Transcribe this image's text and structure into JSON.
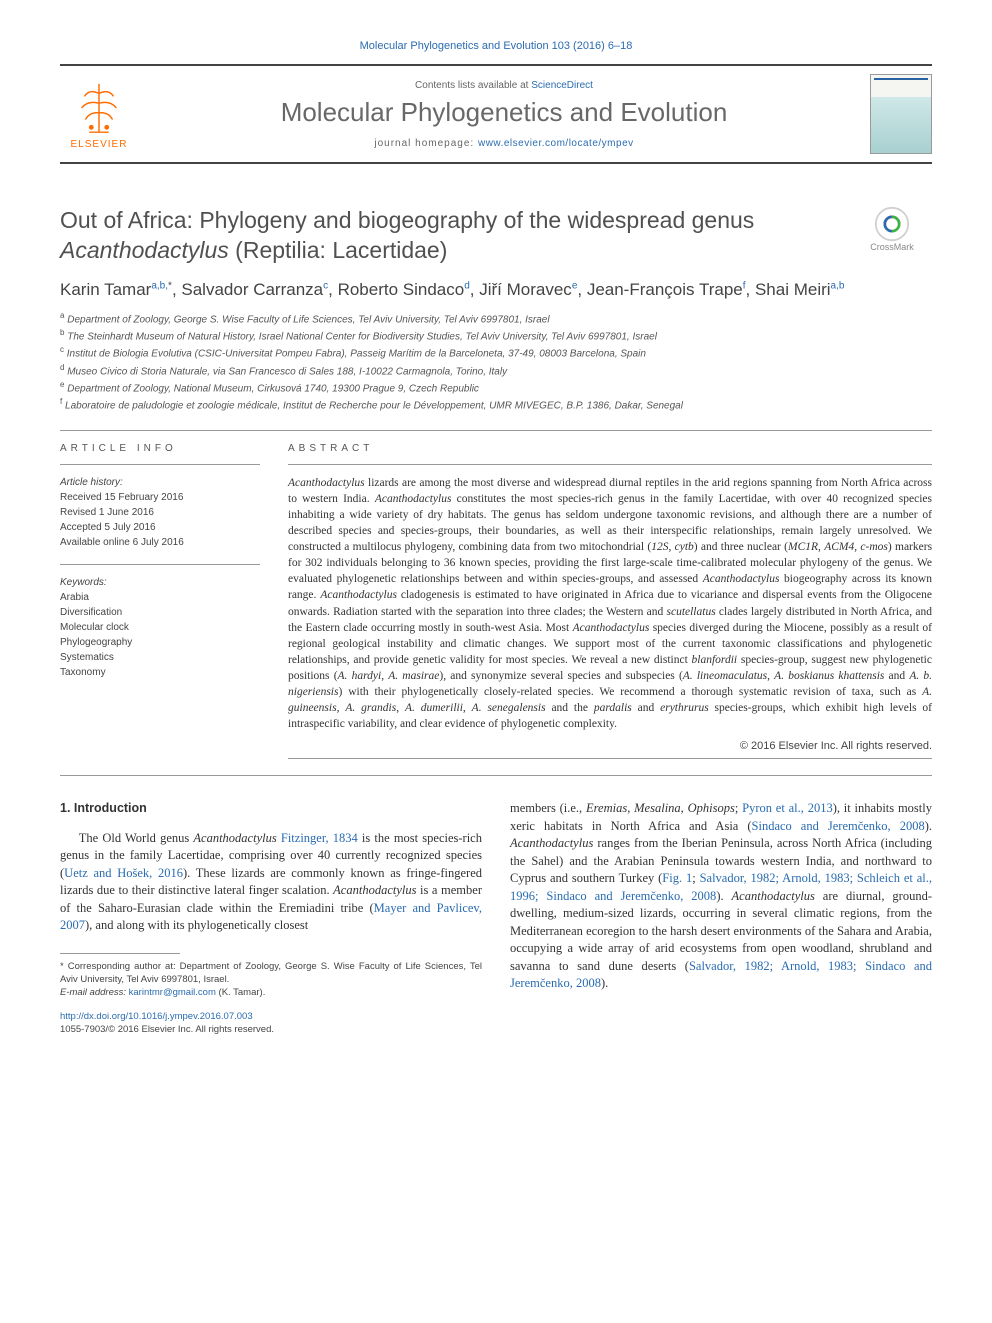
{
  "header": {
    "citation": "Molecular Phylogenetics and Evolution 103 (2016) 6–18",
    "contents_prefix": "Contents lists available at",
    "contents_link": "ScienceDirect",
    "journal_name": "Molecular Phylogenetics and Evolution",
    "homepage_prefix": "journal homepage:",
    "homepage_link": "www.elsevier.com/locate/ympev",
    "publisher": "ELSEVIER"
  },
  "crossmark": {
    "label": "CrossMark"
  },
  "title": {
    "line1": "Out of Africa: Phylogeny and biogeography of the widespread genus",
    "line2_italic": "Acanthodactylus",
    "line2_rest": " (Reptilia: Lacertidae)"
  },
  "authors": [
    {
      "name": "Karin Tamar",
      "affi": "a,b,",
      "star": "*"
    },
    {
      "name": "Salvador Carranza",
      "affi": "c"
    },
    {
      "name": "Roberto Sindaco",
      "affi": "d"
    },
    {
      "name": "Jiří Moravec",
      "affi": "e"
    },
    {
      "name": "Jean-François Trape",
      "affi": "f"
    },
    {
      "name": "Shai Meiri",
      "affi": "a,b"
    }
  ],
  "affiliations": [
    {
      "key": "a",
      "text": "Department of Zoology, George S. Wise Faculty of Life Sciences, Tel Aviv University, Tel Aviv 6997801, Israel"
    },
    {
      "key": "b",
      "text": "The Steinhardt Museum of Natural History, Israel National Center for Biodiversity Studies, Tel Aviv University, Tel Aviv 6997801, Israel"
    },
    {
      "key": "c",
      "text": "Institut de Biologia Evolutiva (CSIC-Universitat Pompeu Fabra), Passeig Marítim de la Barceloneta, 37-49, 08003 Barcelona, Spain"
    },
    {
      "key": "d",
      "text": "Museo Civico di Storia Naturale, via San Francesco di Sales 188, I-10022 Carmagnola, Torino, Italy"
    },
    {
      "key": "e",
      "text": "Department of Zoology, National Museum, Cirkusová 1740, 19300 Prague 9, Czech Republic"
    },
    {
      "key": "f",
      "text": "Laboratoire de paludologie et zoologie médicale, Institut de Recherche pour le Développement, UMR MIVEGEC, B.P. 1386, Dakar, Senegal"
    }
  ],
  "article_info": {
    "heading": "ARTICLE INFO",
    "history_label": "Article history:",
    "history": [
      "Received 15 February 2016",
      "Revised 1 June 2016",
      "Accepted 5 July 2016",
      "Available online 6 July 2016"
    ],
    "keywords_label": "Keywords:",
    "keywords": [
      "Arabia",
      "Diversification",
      "Molecular clock",
      "Phylogeography",
      "Systematics",
      "Taxonomy"
    ]
  },
  "abstract": {
    "heading": "ABSTRACT",
    "text_parts": [
      {
        "italic": true,
        "t": "Acanthodactylus"
      },
      {
        "t": " lizards are among the most diverse and widespread diurnal reptiles in the arid regions spanning from North Africa across to western India. "
      },
      {
        "italic": true,
        "t": "Acanthodactylus"
      },
      {
        "t": " constitutes the most species-rich genus in the family Lacertidae, with over 40 recognized species inhabiting a wide variety of dry habitats. The genus has seldom undergone taxonomic revisions, and although there are a number of described species and species-groups, their boundaries, as well as their interspecific relationships, remain largely unresolved. We constructed a multilocus phylogeny, combining data from two mitochondrial ("
      },
      {
        "italic": true,
        "t": "12S"
      },
      {
        "t": ", "
      },
      {
        "italic": true,
        "t": "cytb"
      },
      {
        "t": ") and three nuclear ("
      },
      {
        "italic": true,
        "t": "MC1R"
      },
      {
        "t": ", "
      },
      {
        "italic": true,
        "t": "ACM4"
      },
      {
        "t": ", "
      },
      {
        "italic": true,
        "t": "c-mos"
      },
      {
        "t": ") markers for 302 individuals belonging to 36 known species, providing the first large-scale time-calibrated molecular phylogeny of the genus. We evaluated phylogenetic relationships between and within species-groups, and assessed "
      },
      {
        "italic": true,
        "t": "Acanthodactylus"
      },
      {
        "t": " biogeography across its known range. "
      },
      {
        "italic": true,
        "t": "Acanthodactylus"
      },
      {
        "t": " cladogenesis is estimated to have originated in Africa due to vicariance and dispersal events from the Oligocene onwards. Radiation started with the separation into three clades; the Western and "
      },
      {
        "italic": true,
        "t": "scutellatus"
      },
      {
        "t": " clades largely distributed in North Africa, and the Eastern clade occurring mostly in south-west Asia. Most "
      },
      {
        "italic": true,
        "t": "Acanthodactylus"
      },
      {
        "t": " species diverged during the Miocene, possibly as a result of regional geological instability and climatic changes. We support most of the current taxonomic classifications and phylogenetic relationships, and provide genetic validity for most species. We reveal a new distinct "
      },
      {
        "italic": true,
        "t": "blanfordii"
      },
      {
        "t": " species-group, suggest new phylogenetic positions ("
      },
      {
        "italic": true,
        "t": "A. hardyi"
      },
      {
        "t": ", "
      },
      {
        "italic": true,
        "t": "A. masirae"
      },
      {
        "t": "), and synonymize several species and subspecies ("
      },
      {
        "italic": true,
        "t": "A. lineomaculatus"
      },
      {
        "t": ", "
      },
      {
        "italic": true,
        "t": "A. boskianus khattensis"
      },
      {
        "t": " and "
      },
      {
        "italic": true,
        "t": "A. b. nigeriensis"
      },
      {
        "t": ") with their phylogenetically closely-related species. We recommend a thorough systematic revision of taxa, such as "
      },
      {
        "italic": true,
        "t": "A. guineensis"
      },
      {
        "t": ", "
      },
      {
        "italic": true,
        "t": "A. grandis"
      },
      {
        "t": ", "
      },
      {
        "italic": true,
        "t": "A. dumerilii"
      },
      {
        "t": ", "
      },
      {
        "italic": true,
        "t": "A. senegalensis"
      },
      {
        "t": " and the "
      },
      {
        "italic": true,
        "t": "pardalis"
      },
      {
        "t": " and "
      },
      {
        "italic": true,
        "t": "erythrurus"
      },
      {
        "t": " species-groups, which exhibit high levels of intraspecific variability, and clear evidence of phylogenetic complexity."
      }
    ],
    "copyright": "© 2016 Elsevier Inc. All rights reserved."
  },
  "intro": {
    "heading": "1. Introduction",
    "col1_parts": [
      {
        "t": "The Old World genus "
      },
      {
        "italic": true,
        "t": "Acanthodactylus"
      },
      {
        "t": " "
      },
      {
        "link": true,
        "t": "Fitzinger, 1834"
      },
      {
        "t": " is the most species-rich genus in the family Lacertidae, comprising over 40 currently recognized species ("
      },
      {
        "link": true,
        "t": "Uetz and Hošek, 2016"
      },
      {
        "t": "). These lizards are commonly known as fringe-fingered lizards due to their distinctive lateral finger scalation. "
      },
      {
        "italic": true,
        "t": "Acanthodactylus"
      },
      {
        "t": " is a member of the Saharo-Eurasian clade within the Eremiadini tribe ("
      },
      {
        "link": true,
        "t": "Mayer and Pavlicev, 2007"
      },
      {
        "t": "), and along with its phylogenetically closest"
      }
    ],
    "col2_parts": [
      {
        "t": "members (i.e., "
      },
      {
        "italic": true,
        "t": "Eremias"
      },
      {
        "t": ", "
      },
      {
        "italic": true,
        "t": "Mesalina"
      },
      {
        "t": ", "
      },
      {
        "italic": true,
        "t": "Ophisops"
      },
      {
        "t": "; "
      },
      {
        "link": true,
        "t": "Pyron et al., 2013"
      },
      {
        "t": "), it inhabits mostly xeric habitats in North Africa and Asia ("
      },
      {
        "link": true,
        "t": "Sindaco and Jeremčenko, 2008"
      },
      {
        "t": "). "
      },
      {
        "italic": true,
        "t": "Acanthodactylus"
      },
      {
        "t": " ranges from the Iberian Peninsula, across North Africa (including the Sahel) and the Arabian Peninsula towards western India, and northward to Cyprus and southern Turkey ("
      },
      {
        "link": true,
        "t": "Fig. 1"
      },
      {
        "t": "; "
      },
      {
        "link": true,
        "t": "Salvador, 1982; Arnold, 1983; Schleich et al., 1996; Sindaco and Jeremčenko, 2008"
      },
      {
        "t": "). "
      },
      {
        "italic": true,
        "t": "Acanthodactylus"
      },
      {
        "t": " are diurnal, ground-dwelling, medium-sized lizards, occurring in several climatic regions, from the Mediterranean ecoregion to the harsh desert environments of the Sahara and Arabia, occupying a wide array of arid ecosystems from open woodland, shrubland and savanna to sand dune deserts ("
      },
      {
        "link": true,
        "t": "Salvador, 1982; Arnold, 1983; Sindaco and Jeremčenko, 2008"
      },
      {
        "t": ")."
      }
    ]
  },
  "footer": {
    "corr_label": "* Corresponding author at: Department of Zoology, George S. Wise Faculty of Life Sciences, Tel Aviv University, Tel Aviv 6997801, Israel.",
    "email_label": "E-mail address:",
    "email": "karintmr@gmail.com",
    "email_author": "(K. Tamar).",
    "doi": "http://dx.doi.org/10.1016/j.ympev.2016.07.003",
    "issn_copyright": "1055-7903/© 2016 Elsevier Inc. All rights reserved."
  },
  "colors": {
    "link": "#2a6cb0",
    "accent": "#ff6c00",
    "text": "#333333",
    "muted": "#686868",
    "rule": "#444444"
  }
}
